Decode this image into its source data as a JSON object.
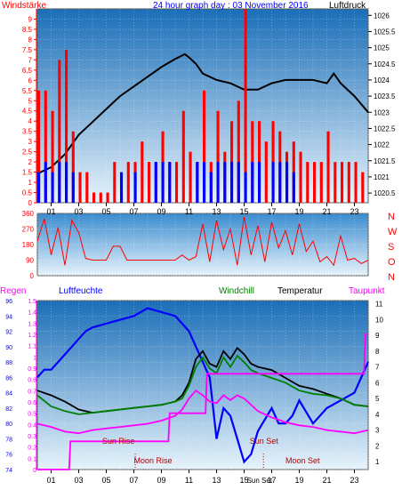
{
  "chart_data": [
    {
      "type": "line",
      "title": "24 hour graph day : 03 November 2016",
      "left_axis_label": "Windstärke",
      "right_axis_label": "Luftdruck",
      "left_ylim": [
        0,
        9.5
      ],
      "left_ticks": [
        "0",
        "0.5",
        "1",
        "1.5",
        "2",
        "2.5",
        "3",
        "3.5",
        "4",
        "4.5",
        "5",
        "5.5",
        "6",
        "6.5",
        "7",
        "7.5",
        "8",
        "8.5",
        "9"
      ],
      "right_ylim": [
        1020.2,
        1026.2
      ],
      "right_ticks": [
        "1020.5",
        "1021",
        "1021.5",
        "1022",
        "1022.5",
        "1023",
        "1023.5",
        "1024",
        "1024.5",
        "1025",
        "1025.5",
        "1026"
      ],
      "x_ticks": [
        "01",
        "03",
        "05",
        "07",
        "09",
        "11",
        "13",
        "15",
        "17",
        "19",
        "21",
        "23"
      ],
      "series": [
        {
          "color": "#000000",
          "axis": "right",
          "x": [
            0,
            1,
            2,
            3,
            4,
            5,
            6,
            7,
            8,
            9,
            10,
            10.7,
            11,
            11.5,
            12,
            13,
            14,
            15,
            16,
            17,
            18,
            19,
            20,
            21,
            21.5,
            22,
            23,
            24
          ],
          "y": [
            1021.1,
            1021.3,
            1021.7,
            1022.3,
            1022.7,
            1023.1,
            1023.5,
            1023.8,
            1024.1,
            1024.4,
            1024.65,
            1024.8,
            1024.7,
            1024.5,
            1024.2,
            1024.0,
            1023.9,
            1023.7,
            1023.7,
            1023.9,
            1024.0,
            1024.0,
            1024.0,
            1023.9,
            1024.2,
            1023.9,
            1023.5,
            1023.0
          ]
        },
        {
          "color": "#ff0000",
          "axis": "left",
          "style": "bars",
          "x": [
            0,
            0.5,
            1,
            1.5,
            2,
            2.5,
            3,
            3.5,
            4,
            4.5,
            5,
            5.5,
            6,
            6.5,
            7,
            7.5,
            8,
            8.5,
            9,
            9.5,
            10,
            10.5,
            11,
            11.5,
            12,
            12.5,
            13,
            13.5,
            14,
            14.5,
            15,
            15.5,
            16,
            16.5,
            17,
            17.5,
            18,
            18.5,
            19,
            19.5,
            20,
            20.5,
            21,
            21.5,
            22,
            22.5,
            23,
            23.5
          ],
          "y": [
            5.5,
            5.5,
            4.5,
            7,
            7.5,
            3.5,
            1.5,
            1.5,
            0.5,
            0.5,
            0.5,
            2,
            0.5,
            2,
            2,
            3,
            2,
            2,
            3.5,
            2,
            2,
            4.5,
            2.5,
            2,
            5.5,
            2,
            4.5,
            2.5,
            4,
            5,
            9.5,
            4,
            4,
            3,
            4,
            3.5,
            2.5,
            3,
            2.5,
            2,
            2,
            2,
            3.5,
            2,
            2,
            2,
            2,
            1.5
          ]
        },
        {
          "color": "#0000ff",
          "axis": "left",
          "style": "bars",
          "x": [
            0,
            0.5,
            1,
            1.5,
            2,
            2.5,
            6,
            7,
            8.5,
            9,
            9.5,
            11.5,
            12,
            12.5,
            13,
            13.5,
            14,
            14.5,
            15,
            15.5,
            16,
            17,
            17.5,
            18,
            18.5
          ],
          "y": [
            1.5,
            2,
            1.5,
            2,
            2,
            1.5,
            1.5,
            1.5,
            2,
            2,
            2,
            2,
            2,
            1.5,
            2,
            2,
            2,
            2,
            1.5,
            2,
            2,
            2,
            2,
            2,
            1.5
          ]
        }
      ]
    },
    {
      "type": "line",
      "ylim": [
        0,
        360
      ],
      "y_ticks": [
        "0",
        "90",
        "180",
        "270",
        "360"
      ],
      "direction_labels": [
        "N",
        "W",
        "S",
        "O",
        "N"
      ],
      "series": [
        {
          "color": "#ff0000",
          "x": [
            0,
            0.5,
            1,
            1.5,
            2,
            2.5,
            3,
            3.5,
            4,
            5,
            5.5,
            6,
            6.5,
            7,
            8,
            9,
            10,
            10.5,
            11,
            11.5,
            12,
            12.5,
            13,
            13.5,
            14,
            14.5,
            15,
            15.5,
            16,
            16.5,
            17,
            17.5,
            18,
            18.5,
            19,
            19.5,
            20,
            20.5,
            21,
            21.5,
            22,
            22.5,
            23,
            23.5,
            24
          ],
          "y": [
            200,
            330,
            120,
            280,
            60,
            320,
            250,
            100,
            90,
            90,
            170,
            170,
            90,
            90,
            90,
            90,
            90,
            120,
            90,
            110,
            300,
            80,
            320,
            150,
            270,
            60,
            340,
            120,
            290,
            80,
            310,
            160,
            260,
            120,
            300,
            140,
            200,
            80,
            110,
            60,
            230,
            90,
            100,
            70,
            90
          ]
        }
      ]
    },
    {
      "type": "line",
      "legend": [
        "Regen",
        "Luftfeuchte",
        "Windchill",
        "Temperatur",
        "Taupunkt"
      ],
      "legend_colors": [
        "#ff00ff",
        "#0000ff",
        "#008000",
        "#000000",
        "#ff00ff"
      ],
      "left_ticks": [
        "0",
        "0.1",
        "0.2",
        "0.3",
        "0.4",
        "0.5",
        "0.6",
        "0.7",
        "0.8",
        "0.9",
        "1",
        "1.1",
        "1.2",
        "1.3",
        "1.4",
        "1.5"
      ],
      "humidity_ticks": [
        "74",
        "76",
        "78",
        "80",
        "82",
        "84",
        "86",
        "88",
        "90",
        "92",
        "94",
        "96"
      ],
      "temp_ticks": [
        "1",
        "2",
        "3",
        "4",
        "5",
        "6",
        "7",
        "8",
        "9",
        "10",
        "11"
      ],
      "x_ticks": [
        "01",
        "03",
        "05",
        "07",
        "09",
        "11",
        "13",
        "15",
        "17",
        "19",
        "21",
        "23"
      ],
      "annotations": [
        "Sun Rise",
        "Moon Rise",
        "Sun Set",
        "Moon Set",
        "Sun Set"
      ],
      "series": [
        {
          "color": "#0000ff",
          "axis": "humidity",
          "x": [
            0,
            0.5,
            1,
            1.5,
            2,
            2.5,
            3,
            3.5,
            4,
            5,
            6,
            7,
            8,
            9,
            10,
            10.5,
            11,
            11.5,
            12,
            12.5,
            13,
            13.5,
            14,
            14.5,
            15,
            15.5,
            16,
            17,
            17.5,
            18,
            18.5,
            19,
            20,
            21,
            22,
            23,
            24
          ],
          "y": [
            86,
            87,
            87,
            88,
            89,
            90,
            91,
            92,
            92.5,
            93,
            93.5,
            94,
            95,
            94.5,
            94,
            93,
            92,
            90,
            88,
            86,
            78,
            82,
            81,
            78,
            75,
            76,
            79,
            82,
            80,
            80,
            81,
            83,
            80,
            82,
            83,
            84,
            88
          ]
        },
        {
          "color": "#000000",
          "axis": "temperature",
          "x": [
            0,
            1,
            2,
            3,
            4,
            5,
            6,
            7,
            8,
            9,
            10,
            10.5,
            11,
            11.5,
            12,
            12.5,
            13,
            13.5,
            14,
            14.5,
            15,
            15.5,
            16,
            17,
            18,
            19,
            20,
            21,
            22,
            23,
            24
          ],
          "y": [
            5.5,
            5.2,
            4.8,
            4.3,
            4.1,
            4.2,
            4.3,
            4.4,
            4.5,
            4.6,
            4.8,
            5.2,
            6,
            7.5,
            8,
            7.2,
            7,
            8,
            7.5,
            8.2,
            7.8,
            7.2,
            7,
            6.8,
            6.3,
            5.8,
            5.6,
            5.3,
            5,
            4.6,
            4.5
          ]
        },
        {
          "color": "#008000",
          "axis": "temperature",
          "x": [
            0,
            1,
            2,
            3,
            4,
            5,
            6,
            7,
            8,
            9,
            10,
            10.5,
            11,
            11.5,
            12,
            12.5,
            13,
            13.5,
            14,
            14.5,
            15,
            15.5,
            16,
            17,
            18,
            19,
            20,
            21,
            22,
            23,
            24
          ],
          "y": [
            5.2,
            4.5,
            4.2,
            4.0,
            4.1,
            4.2,
            4.3,
            4.4,
            4.5,
            4.6,
            4.8,
            5.0,
            5.8,
            7.0,
            7.6,
            6.9,
            6.6,
            7.6,
            7.0,
            7.7,
            7.3,
            6.8,
            6.6,
            6.3,
            6.0,
            5.5,
            5.3,
            5.2,
            5.0,
            4.6,
            4.5
          ]
        },
        {
          "color": "#ff00ff",
          "axis": "temperature",
          "x": [
            0,
            1,
            2,
            3,
            4,
            5,
            6,
            7,
            8,
            9,
            10,
            10.5,
            11,
            11.5,
            12,
            12.5,
            13,
            13.5,
            14,
            14.5,
            15,
            15.5,
            16,
            17,
            18,
            19,
            20,
            21,
            22,
            23,
            24
          ],
          "y": [
            3.4,
            3.2,
            2.9,
            2.8,
            3.0,
            3.1,
            3.2,
            3.3,
            3.4,
            3.6,
            3.9,
            4.3,
            5.0,
            5.5,
            5.2,
            4.8,
            4.7,
            5.2,
            4.9,
            5.2,
            5.0,
            4.6,
            4.2,
            3.8,
            3.5,
            3.3,
            3.2,
            3.0,
            2.9,
            2.8,
            3.0
          ]
        },
        {
          "color": "#ff00ff",
          "axis": "rain",
          "style": "step",
          "x": [
            0,
            2.3,
            2.4,
            9.5,
            9.6,
            12.2,
            12.3,
            23.7,
            23.8,
            24
          ],
          "y": [
            0,
            0,
            0.25,
            0.25,
            0.5,
            0.5,
            0.85,
            0.85,
            1.2,
            1.2
          ]
        }
      ]
    }
  ]
}
